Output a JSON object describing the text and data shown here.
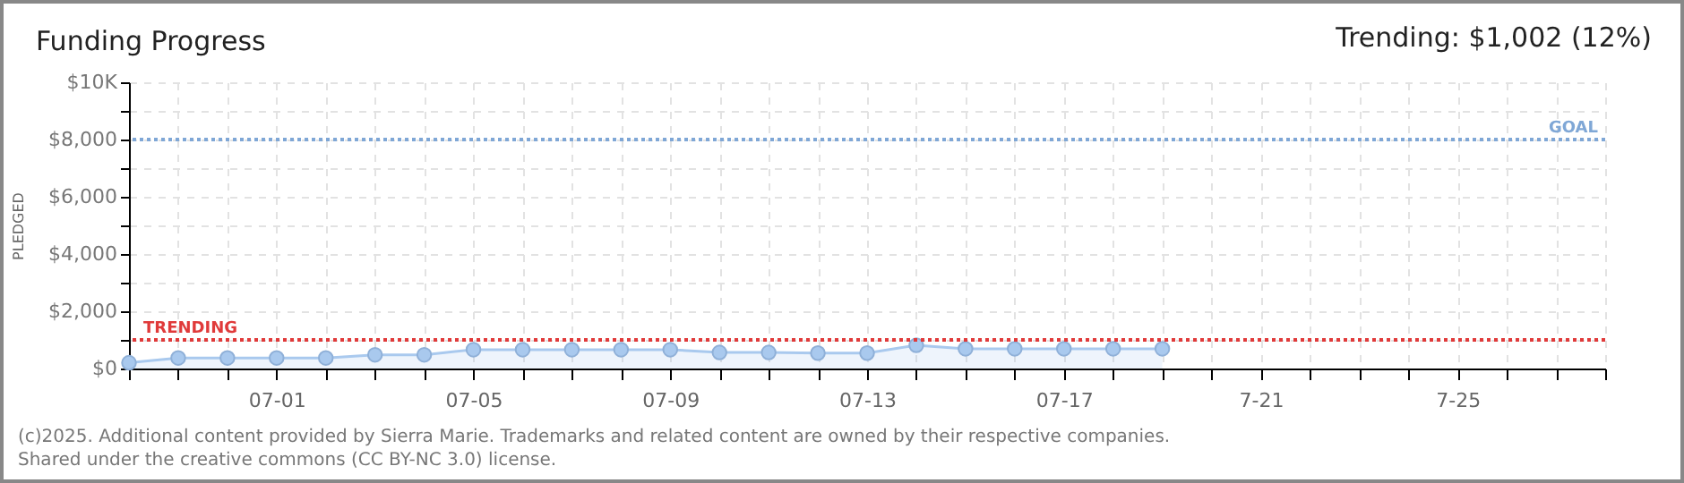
{
  "chart_data": {
    "type": "area",
    "title": "Funding Progress",
    "ylabel": "PLEDGED",
    "annotations": [
      "Trending: $1,002 (12%)",
      "(c)2025. Additional content provided by Sierra Marie. Trademarks and related content are owned by their respective companies.",
      "Shared under the creative commons (CC BY-NC 3.0) license."
    ],
    "x": [
      "--06-28",
      "--06-29",
      "--06-30",
      "--07-01",
      "--07-02",
      "--07-03",
      "--07-04",
      "--07-05",
      "--07-06",
      "--07-07",
      "--07-08",
      "--07-09",
      "--07-10",
      "--07-11",
      "--07-12",
      "--07-13",
      "--07-14",
      "--07-15",
      "--07-16",
      "--07-17",
      "--07-18",
      "--07-19"
    ],
    "series": [
      {
        "color": "#a9c9ee",
        "values": [
          200,
          370,
          370,
          370,
          370,
          480,
          480,
          660,
          660,
          660,
          660,
          660,
          560,
          560,
          540,
          540,
          810,
          690,
          690,
          690,
          690,
          690
        ]
      }
    ],
    "marker": "circle",
    "grid": true,
    "xlim": [
      "--06-28",
      "--07-28"
    ],
    "xticks": [
      {
        "value": "--06-28",
        "label": null
      },
      {
        "value": "--06-29",
        "label": null
      },
      {
        "value": "--06-30",
        "label": null
      },
      {
        "value": "--07-01",
        "label": "07-01"
      },
      {
        "value": "--07-02",
        "label": null
      },
      {
        "value": "--07-03",
        "label": null
      },
      {
        "value": "--07-04",
        "label": null
      },
      {
        "value": "--07-05",
        "label": "07-05"
      },
      {
        "value": "--07-06",
        "label": null
      },
      {
        "value": "--07-07",
        "label": null
      },
      {
        "value": "--07-08",
        "label": null
      },
      {
        "value": "--07-09",
        "label": "07-09"
      },
      {
        "value": "--07-10",
        "label": null
      },
      {
        "value": "--07-11",
        "label": null
      },
      {
        "value": "--07-12",
        "label": null
      },
      {
        "value": "--07-13",
        "label": "07-13"
      },
      {
        "value": "--07-14",
        "label": null
      },
      {
        "value": "--07-15",
        "label": null
      },
      {
        "value": "--07-16",
        "label": null
      },
      {
        "value": "--07-17",
        "label": "07-17"
      },
      {
        "value": "--07-18",
        "label": null
      },
      {
        "value": "--07-19",
        "label": null
      },
      {
        "value": "--07-20",
        "label": null
      },
      {
        "value": "--07-21",
        "label": "7-21"
      },
      {
        "value": "--07-22",
        "label": null
      },
      {
        "value": "--07-23",
        "label": null
      },
      {
        "value": "--07-24",
        "label": null
      },
      {
        "value": "--07-25",
        "label": "7-25"
      },
      {
        "value": "--07-26",
        "label": null
      },
      {
        "value": "--07-27",
        "label": null
      },
      {
        "value": "--07-28",
        "label": null
      }
    ],
    "ylim": [
      0,
      10000
    ],
    "yticks": [
      {
        "value": 0,
        "label": "$0"
      },
      {
        "value": 1000,
        "label": null
      },
      {
        "value": 2000,
        "label": "$2,000"
      },
      {
        "value": 3000,
        "label": null
      },
      {
        "value": 4000,
        "label": "$4,000"
      },
      {
        "value": 5000,
        "label": null
      },
      {
        "value": 6000,
        "label": "$6,000"
      },
      {
        "value": 7000,
        "label": null
      },
      {
        "value": 8000,
        "label": "$8,000"
      },
      {
        "value": 9000,
        "label": null
      },
      {
        "value": 10000,
        "label": "$10K"
      }
    ],
    "ref_lines": [
      {
        "axis": "y",
        "value": 8000,
        "label": "GOAL",
        "color": "#7fa7d6",
        "line_style": "dotted"
      },
      {
        "axis": "y",
        "value": 1002,
        "label": "TRENDING",
        "color": "#e03a3a",
        "line_style": "dotted"
      }
    ],
    "line_style": "solid"
  }
}
